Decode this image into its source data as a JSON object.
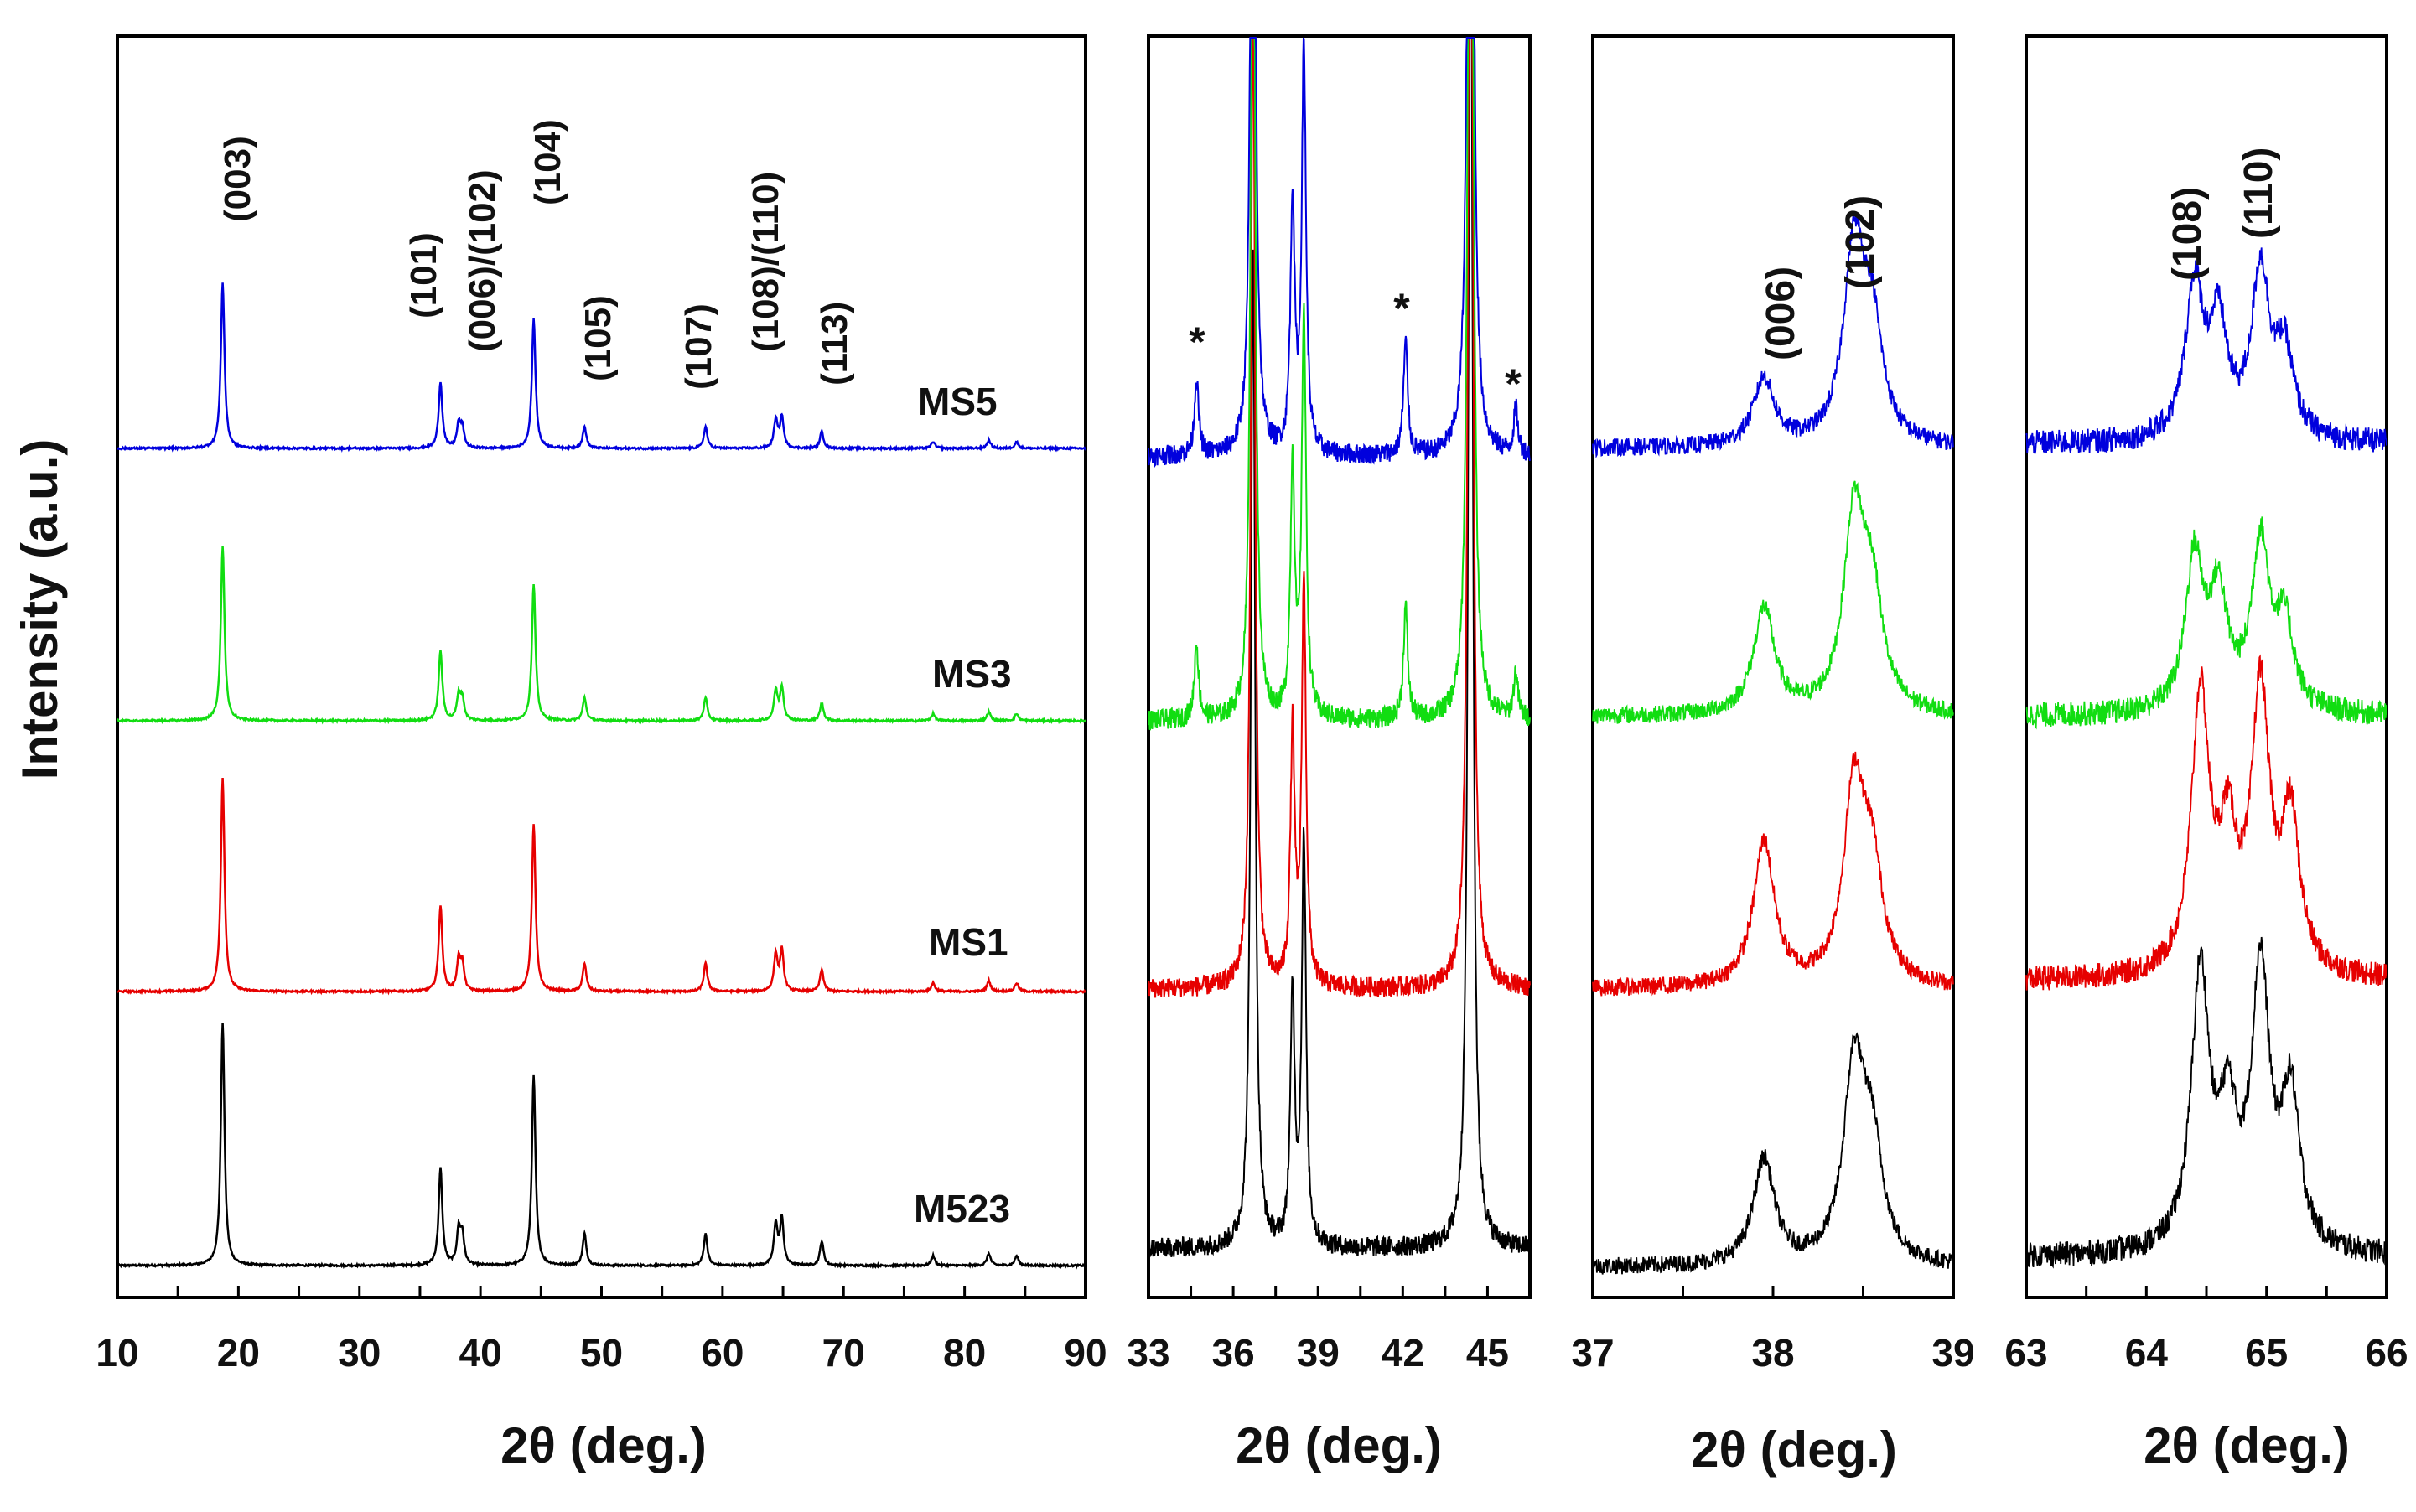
{
  "y_axis_label": "Intensity (a.u.)",
  "colors": {
    "M523": "#000000",
    "MS1": "#e60000",
    "MS3": "#11dd11",
    "MS5": "#0000dd"
  },
  "chart_data": [
    {
      "type": "line",
      "title": "",
      "xlabel": "2θ (deg.)",
      "ylabel": "Intensity (a.u.)",
      "xlim": [
        10,
        90
      ],
      "xticks": [
        "10",
        "20",
        "30",
        "40",
        "50",
        "60",
        "70",
        "80",
        "90"
      ],
      "grid": false,
      "series_order": [
        "M523",
        "MS1",
        "MS3",
        "MS5"
      ],
      "series_labels": [
        "M523",
        "MS1",
        "MS3",
        "MS5"
      ],
      "peaks": [
        [
          18.7,
          1.0
        ],
        [
          36.7,
          0.4
        ],
        [
          38.2,
          0.14
        ],
        [
          38.5,
          0.12
        ],
        [
          44.4,
          0.78
        ],
        [
          48.6,
          0.13
        ],
        [
          58.6,
          0.13
        ],
        [
          64.4,
          0.17
        ],
        [
          64.9,
          0.19
        ],
        [
          68.2,
          0.1
        ],
        [
          77.4,
          0.04
        ],
        [
          82.0,
          0.05
        ],
        [
          84.3,
          0.04
        ]
      ],
      "annotations": [
        {
          "text": "(003)",
          "x": 18.7
        },
        {
          "text": "(101)",
          "x": 36.7
        },
        {
          "text": "(006)/(102)",
          "x": 38.3
        },
        {
          "text": "(104)",
          "x": 44.4
        },
        {
          "text": "(105)",
          "x": 48.6
        },
        {
          "text": "(107)",
          "x": 58.6
        },
        {
          "text": "(108)/(110)",
          "x": 64.7
        },
        {
          "text": "(113)",
          "x": 68.2
        }
      ]
    },
    {
      "type": "line",
      "title": "",
      "xlabel": "2θ (deg.)",
      "xlim": [
        33,
        46.5
      ],
      "xticks": [
        "33",
        "36",
        "39",
        "42",
        "45"
      ],
      "grid": false,
      "series_order": [
        "M523",
        "MS1",
        "MS3",
        "MS5"
      ],
      "impurity_marker": "*",
      "impurity_x": [
        34.7,
        42.1,
        46.0
      ]
    },
    {
      "type": "line",
      "title": "",
      "xlabel": "2θ (deg.)",
      "xlim": [
        37,
        39
      ],
      "xticks": [
        "37",
        "38",
        "39"
      ],
      "grid": false,
      "series_order": [
        "M523",
        "MS1",
        "MS3",
        "MS5"
      ],
      "annotations": [
        {
          "text": "(006)",
          "x": 38.0
        },
        {
          "text": "(102)",
          "x": 38.45
        }
      ]
    },
    {
      "type": "line",
      "title": "",
      "xlabel": "2θ (deg.)",
      "xlim": [
        63,
        66
      ],
      "xticks": [
        "63",
        "64",
        "65",
        "66"
      ],
      "grid": false,
      "series_order": [
        "M523",
        "MS1",
        "MS3",
        "MS5"
      ],
      "annotations": [
        {
          "text": "(108)",
          "x": 64.4
        },
        {
          "text": "(110)",
          "x": 64.95
        }
      ]
    }
  ]
}
